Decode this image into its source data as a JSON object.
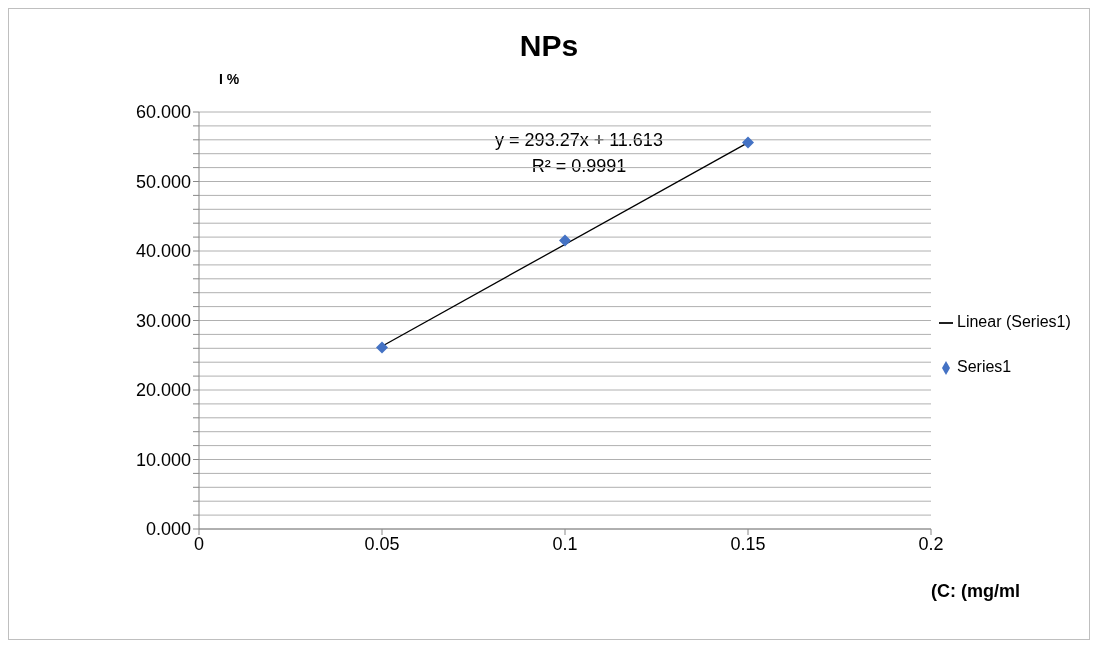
{
  "chart_data": {
    "type": "scatter",
    "title": "NPs",
    "xlabel": "(C: (mg/ml",
    "ylabel": "I %",
    "x": [
      0.05,
      0.1,
      0.15
    ],
    "series": [
      {
        "name": "Series1",
        "color": "#4472c4",
        "values": [
          26.1,
          41.5,
          55.6
        ],
        "marker": "diamond"
      },
      {
        "name": "Linear (Series1)",
        "type": "line",
        "color": "#000000",
        "x": [
          0.05,
          0.15
        ],
        "values": [
          26.3,
          55.6
        ],
        "marker": "none"
      }
    ],
    "annotations": [
      "y = 293.27x + 11.613",
      "R² = 0.9991"
    ],
    "xlim": [
      0,
      0.2
    ],
    "xticks": [
      0,
      0.05,
      0.1,
      0.15,
      0.2
    ],
    "ylim": [
      0,
      60
    ],
    "yticks": [
      {
        "value": 0,
        "label": "0.000"
      },
      {
        "value": 2,
        "label": null
      },
      {
        "value": 4,
        "label": null
      },
      {
        "value": 6,
        "label": null
      },
      {
        "value": 8,
        "label": null
      },
      {
        "value": 10,
        "label": "10.000"
      },
      {
        "value": 12,
        "label": null
      },
      {
        "value": 14,
        "label": null
      },
      {
        "value": 16,
        "label": null
      },
      {
        "value": 18,
        "label": null
      },
      {
        "value": 20,
        "label": "20.000"
      },
      {
        "value": 22,
        "label": null
      },
      {
        "value": 24,
        "label": null
      },
      {
        "value": 26,
        "label": null
      },
      {
        "value": 28,
        "label": null
      },
      {
        "value": 30,
        "label": "30.000"
      },
      {
        "value": 32,
        "label": null
      },
      {
        "value": 34,
        "label": null
      },
      {
        "value": 36,
        "label": null
      },
      {
        "value": 38,
        "label": null
      },
      {
        "value": 40,
        "label": "40.000"
      },
      {
        "value": 42,
        "label": null
      },
      {
        "value": 44,
        "label": null
      },
      {
        "value": 46,
        "label": null
      },
      {
        "value": 48,
        "label": null
      },
      {
        "value": 50,
        "label": "50.000"
      },
      {
        "value": 52,
        "label": null
      },
      {
        "value": 54,
        "label": null
      },
      {
        "value": 56,
        "label": null
      },
      {
        "value": 58,
        "label": null
      },
      {
        "value": 60,
        "label": "60.000"
      }
    ],
    "grid": "y",
    "legend": "right"
  }
}
